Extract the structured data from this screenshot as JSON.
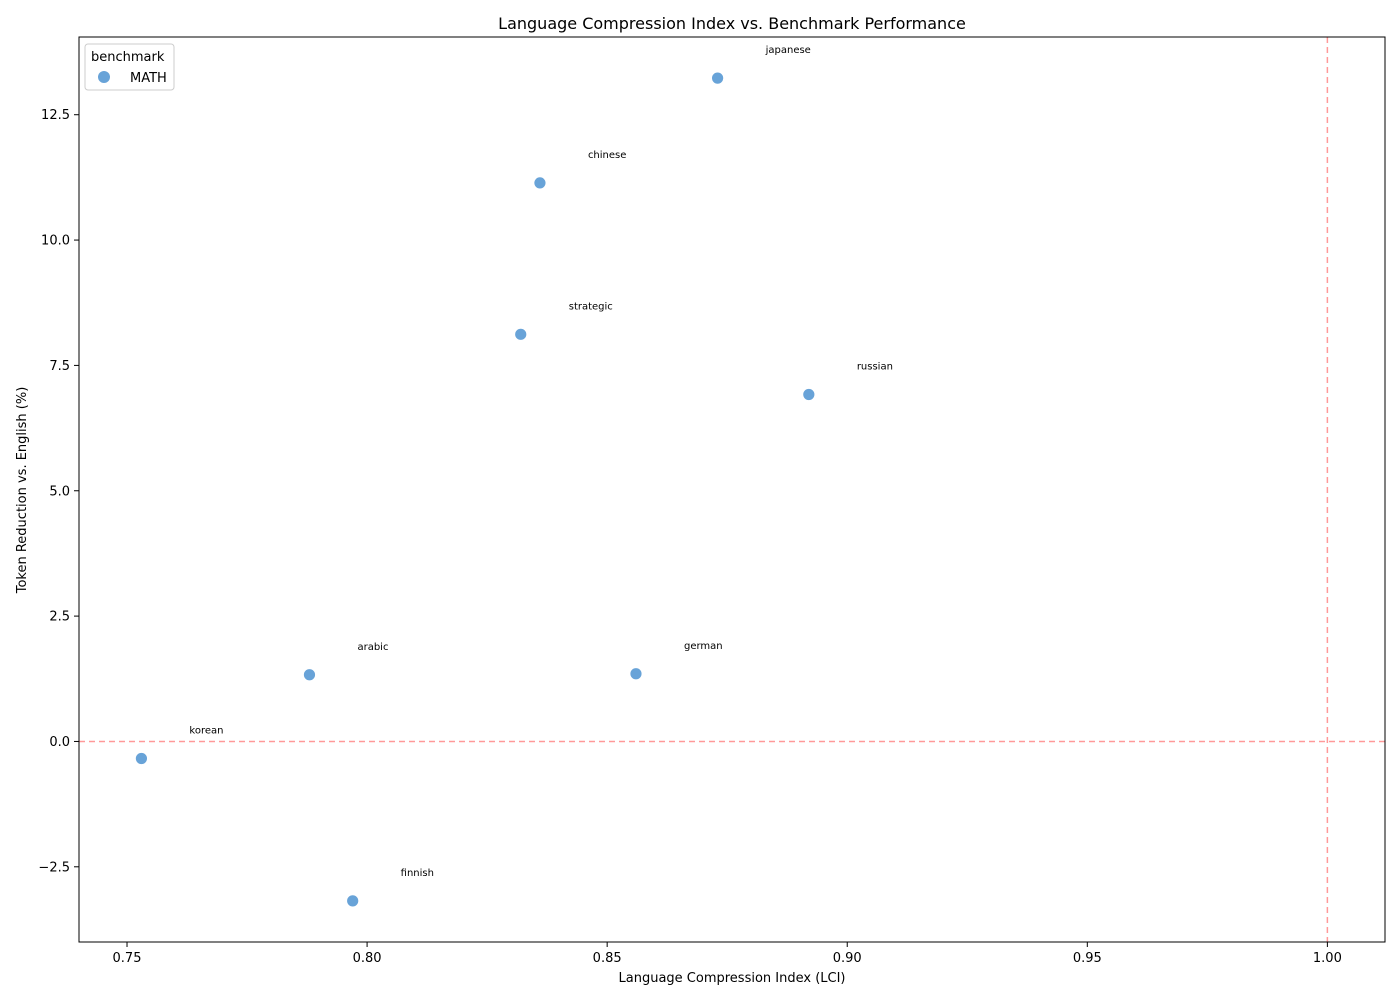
{
  "chart_data": {
    "type": "scatter",
    "title": "Language Compression Index vs. Benchmark Performance",
    "xlabel": "Language Compression Index (LCI)",
    "ylabel": "Token Reduction vs. English (%)",
    "xlim": [
      0.74,
      1.012
    ],
    "ylim": [
      -4.0,
      14.05
    ],
    "x_ticks": [
      0.75,
      0.8,
      0.85,
      0.9,
      0.95,
      1.0
    ],
    "x_tick_labels": [
      "0.75",
      "0.80",
      "0.85",
      "0.90",
      "0.95",
      "1.00"
    ],
    "y_ticks": [
      -2.5,
      0.0,
      2.5,
      5.0,
      7.5,
      10.0,
      12.5
    ],
    "y_tick_labels": [
      "−2.5",
      "0.0",
      "2.5",
      "5.0",
      "7.5",
      "10.0",
      "12.5"
    ],
    "grid": false,
    "reference_lines": {
      "horizontal_y": 0.0,
      "vertical_x": 1.0,
      "color": "#ff9999",
      "style": "dashed"
    },
    "legend": {
      "title": "benchmark",
      "placement": "upper-left",
      "entries": [
        "MATH"
      ]
    },
    "series": [
      {
        "name": "MATH",
        "color": "#5b9bd5",
        "points": [
          {
            "label": "japanese",
            "x": 0.873,
            "y": 13.23
          },
          {
            "label": "chinese",
            "x": 0.836,
            "y": 11.14
          },
          {
            "label": "strategic",
            "x": 0.832,
            "y": 8.12
          },
          {
            "label": "russian",
            "x": 0.892,
            "y": 6.92
          },
          {
            "label": "arabic",
            "x": 0.788,
            "y": 1.33
          },
          {
            "label": "german",
            "x": 0.856,
            "y": 1.35
          },
          {
            "label": "korean",
            "x": 0.753,
            "y": -0.34
          },
          {
            "label": "finnish",
            "x": 0.797,
            "y": -3.18
          }
        ]
      }
    ]
  }
}
